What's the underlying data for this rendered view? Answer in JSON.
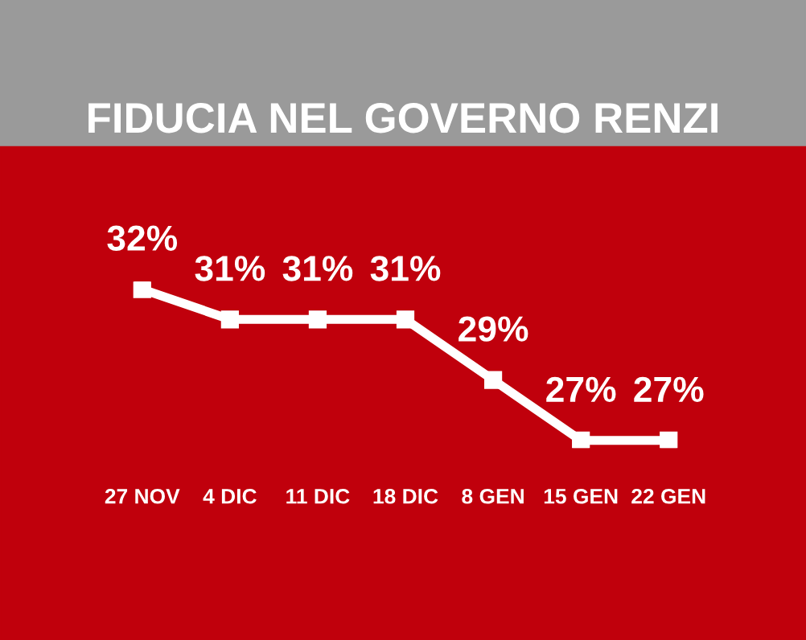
{
  "chart_data": {
    "type": "line",
    "title": "FIDUCIA NEL GOVERNO RENZI",
    "categories": [
      "27 NOV",
      "4 DIC",
      "11 DIC",
      "18 DIC",
      "8 GEN",
      "15 GEN",
      "22 GEN"
    ],
    "series": [
      {
        "color": "#ffffff",
        "values": [
          32,
          31,
          31,
          31,
          29,
          27,
          27
        ],
        "value_labels": [
          "32%",
          "31%",
          "31%",
          "31%",
          "29%",
          "27%",
          "27%"
        ]
      }
    ],
    "marker": "square",
    "line_style": "solid",
    "grid": false,
    "legend": false,
    "tick_labels": "x"
  }
}
